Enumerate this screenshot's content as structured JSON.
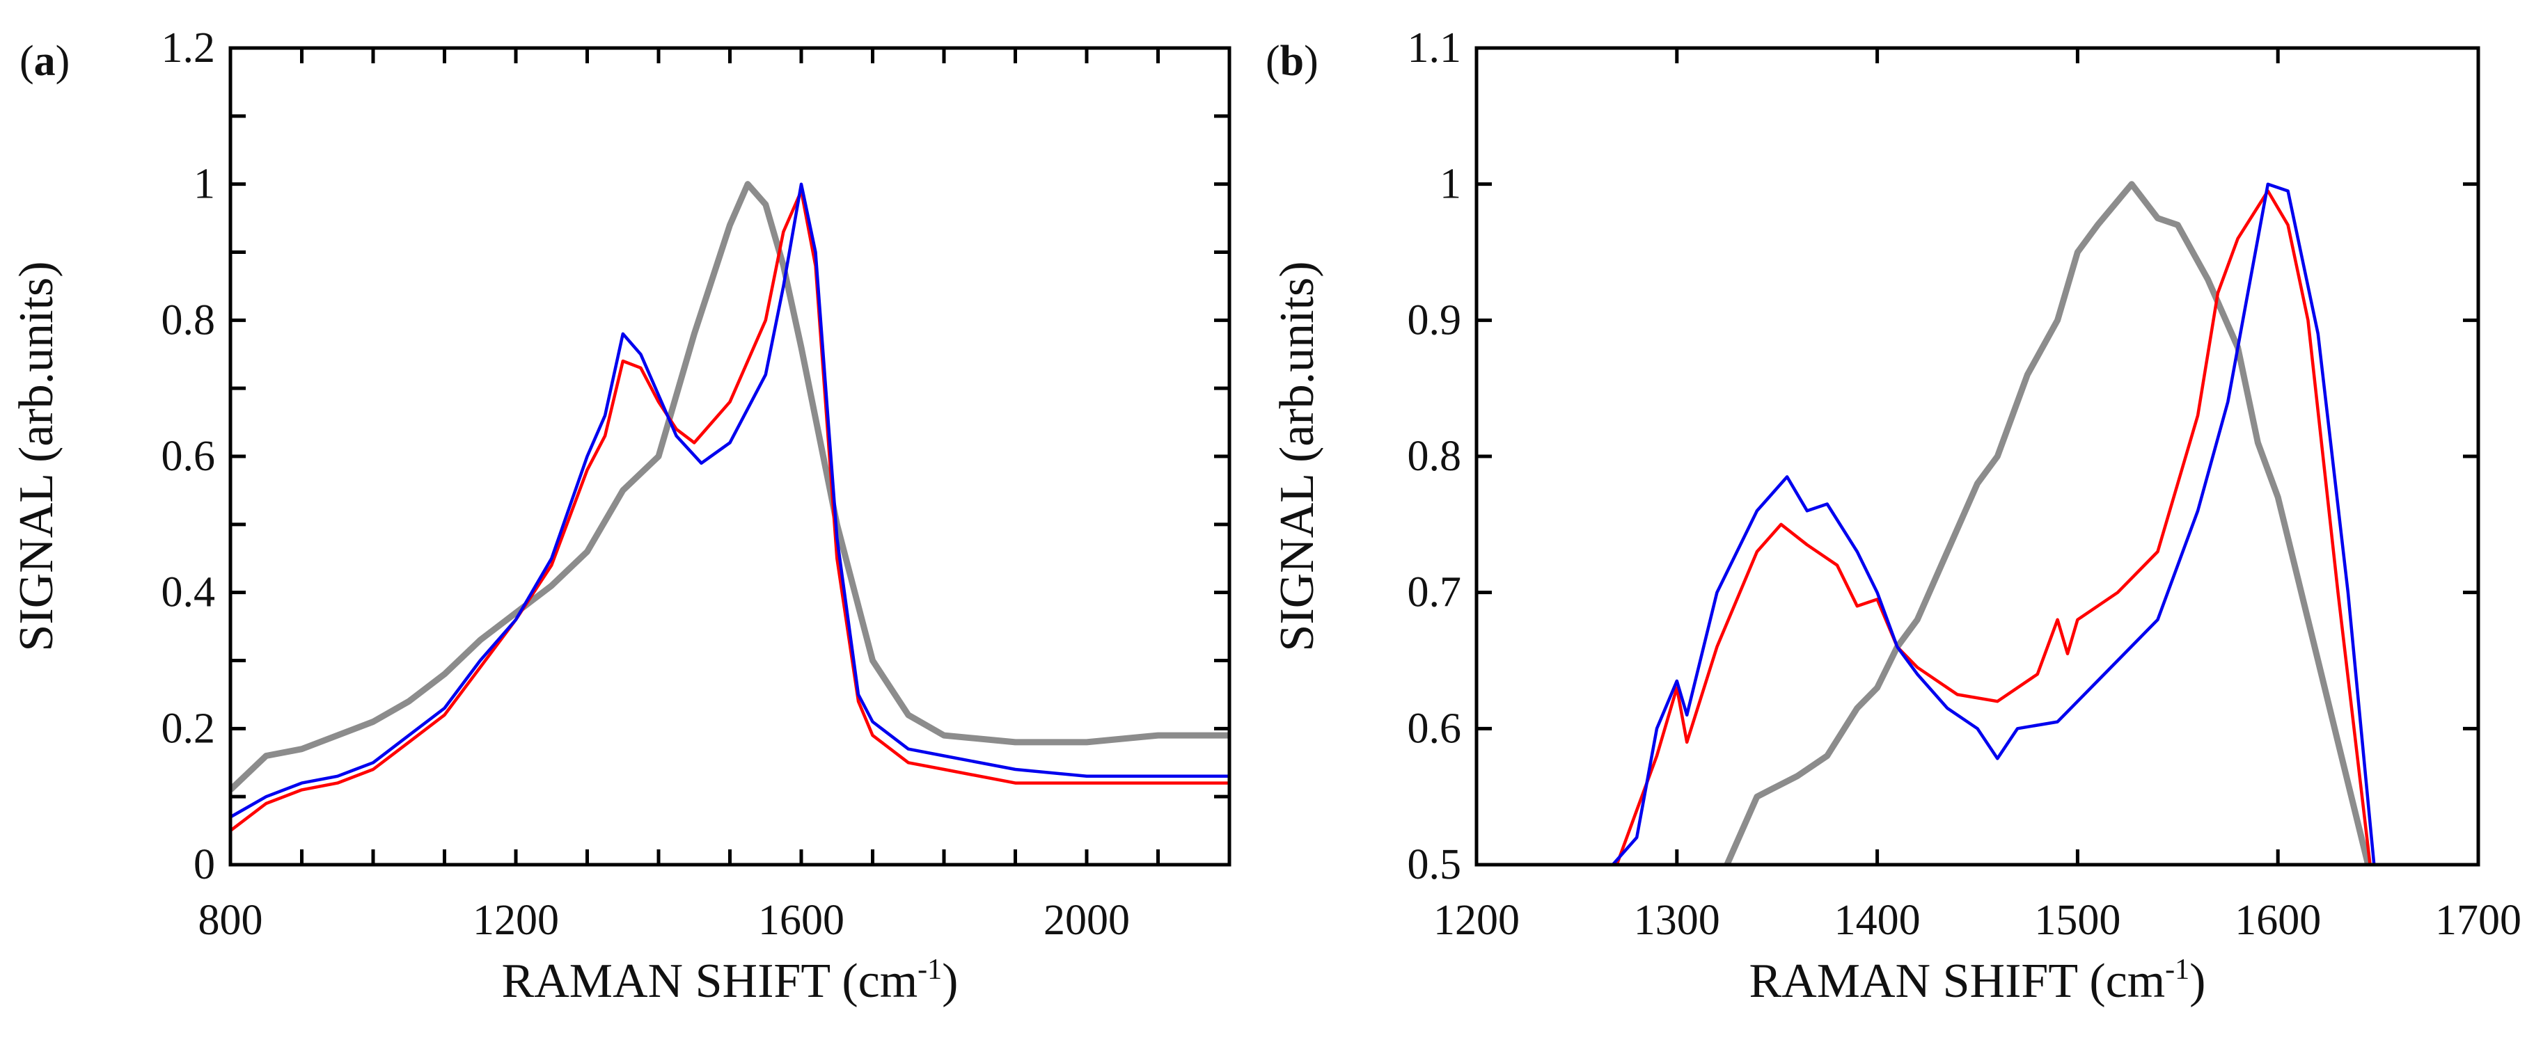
{
  "chart_data": [
    {
      "type": "line",
      "panel_label": "a",
      "xlabel": "RAMAN SHIFT (cm",
      "xlabel_sup": "-1",
      "xlabel_end": ")",
      "ylabel": "SIGNAL (arb.units)",
      "xlim": [
        800,
        2200
      ],
      "ylim": [
        0,
        1.2
      ],
      "grid": false,
      "xticks": [
        {
          "v": 800,
          "label": "800"
        },
        {
          "v": 1200,
          "label": "1200"
        },
        {
          "v": 1600,
          "label": "1600"
        },
        {
          "v": 2000,
          "label": "2000"
        }
      ],
      "yticks": [
        {
          "v": 0,
          "label": "0"
        },
        {
          "v": 0.2,
          "label": "0.2"
        },
        {
          "v": 0.4,
          "label": "0.4"
        },
        {
          "v": 0.6,
          "label": "0.6"
        },
        {
          "v": 0.8,
          "label": "0.8"
        },
        {
          "v": 1.0,
          "label": "1"
        },
        {
          "v": 1.2,
          "label": "1.2"
        }
      ],
      "minor_x_step": 100,
      "minor_y_step": 0.1,
      "series": [
        {
          "name": "gray",
          "color": "#8c8c8c",
          "width": 9,
          "x": [
            800,
            850,
            900,
            950,
            1000,
            1050,
            1100,
            1150,
            1200,
            1250,
            1300,
            1350,
            1400,
            1450,
            1500,
            1525,
            1550,
            1575,
            1600,
            1650,
            1700,
            1750,
            1800,
            1900,
            2000,
            2100,
            2200
          ],
          "y": [
            0.11,
            0.16,
            0.17,
            0.19,
            0.21,
            0.24,
            0.28,
            0.33,
            0.37,
            0.41,
            0.46,
            0.55,
            0.6,
            0.78,
            0.94,
            1.0,
            0.97,
            0.88,
            0.76,
            0.5,
            0.3,
            0.22,
            0.19,
            0.18,
            0.18,
            0.19,
            0.19
          ]
        },
        {
          "name": "red",
          "color": "#ff0000",
          "width": 4.5,
          "x": [
            800,
            850,
            900,
            950,
            1000,
            1050,
            1100,
            1150,
            1200,
            1250,
            1300,
            1325,
            1350,
            1375,
            1400,
            1425,
            1450,
            1500,
            1550,
            1575,
            1600,
            1620,
            1650,
            1680,
            1700,
            1750,
            1800,
            1900,
            2000,
            2100,
            2200
          ],
          "y": [
            0.05,
            0.09,
            0.11,
            0.12,
            0.14,
            0.18,
            0.22,
            0.29,
            0.36,
            0.44,
            0.58,
            0.63,
            0.74,
            0.73,
            0.68,
            0.64,
            0.62,
            0.68,
            0.8,
            0.93,
            0.99,
            0.88,
            0.45,
            0.24,
            0.19,
            0.15,
            0.14,
            0.12,
            0.12,
            0.12,
            0.12
          ]
        },
        {
          "name": "blue",
          "color": "#0000ee",
          "width": 4.5,
          "x": [
            800,
            850,
            900,
            950,
            1000,
            1050,
            1100,
            1150,
            1200,
            1250,
            1300,
            1325,
            1350,
            1375,
            1400,
            1425,
            1460,
            1500,
            1550,
            1575,
            1600,
            1620,
            1650,
            1680,
            1700,
            1750,
            1800,
            1900,
            2000,
            2100,
            2200
          ],
          "y": [
            0.07,
            0.1,
            0.12,
            0.13,
            0.15,
            0.19,
            0.23,
            0.3,
            0.36,
            0.45,
            0.6,
            0.66,
            0.78,
            0.75,
            0.69,
            0.63,
            0.59,
            0.62,
            0.72,
            0.85,
            1.0,
            0.9,
            0.48,
            0.25,
            0.21,
            0.17,
            0.16,
            0.14,
            0.13,
            0.13,
            0.13
          ]
        }
      ]
    },
    {
      "type": "line",
      "panel_label": "b",
      "xlabel": "RAMAN SHIFT (cm",
      "xlabel_sup": "-1",
      "xlabel_end": ")",
      "ylabel": "SIGNAL (arb.units)",
      "xlim": [
        1200,
        1700
      ],
      "ylim": [
        0.5,
        1.1
      ],
      "grid": false,
      "xticks": [
        {
          "v": 1200,
          "label": "1200"
        },
        {
          "v": 1300,
          "label": "1300"
        },
        {
          "v": 1400,
          "label": "1400"
        },
        {
          "v": 1500,
          "label": "1500"
        },
        {
          "v": 1600,
          "label": "1600"
        },
        {
          "v": 1700,
          "label": "1700"
        }
      ],
      "yticks": [
        {
          "v": 0.5,
          "label": "0.5"
        },
        {
          "v": 0.6,
          "label": "0.6"
        },
        {
          "v": 0.7,
          "label": "0.7"
        },
        {
          "v": 0.8,
          "label": "0.8"
        },
        {
          "v": 0.9,
          "label": "0.9"
        },
        {
          "v": 1.0,
          "label": "1"
        },
        {
          "v": 1.1,
          "label": "1.1"
        }
      ],
      "minor_x_step": 100,
      "minor_y_step": 0.1,
      "series": [
        {
          "name": "gray",
          "color": "#8c8c8c",
          "width": 9,
          "x": [
            1325,
            1340,
            1360,
            1375,
            1390,
            1400,
            1410,
            1420,
            1435,
            1450,
            1460,
            1475,
            1490,
            1500,
            1510,
            1527,
            1540,
            1550,
            1565,
            1580,
            1590,
            1600,
            1610,
            1620,
            1630,
            1645
          ],
          "y": [
            0.5,
            0.55,
            0.565,
            0.58,
            0.615,
            0.63,
            0.66,
            0.68,
            0.73,
            0.78,
            0.8,
            0.86,
            0.9,
            0.95,
            0.97,
            1.0,
            0.975,
            0.97,
            0.93,
            0.88,
            0.81,
            0.77,
            0.71,
            0.65,
            0.59,
            0.5
          ]
        },
        {
          "name": "red",
          "color": "#ff0000",
          "width": 4.5,
          "x": [
            1270,
            1280,
            1290,
            1300,
            1305,
            1320,
            1340,
            1352,
            1365,
            1380,
            1390,
            1400,
            1410,
            1420,
            1440,
            1460,
            1480,
            1490,
            1495,
            1500,
            1520,
            1540,
            1550,
            1560,
            1570,
            1580,
            1595,
            1605,
            1615,
            1630,
            1646
          ],
          "y": [
            0.5,
            0.54,
            0.58,
            0.63,
            0.59,
            0.66,
            0.73,
            0.75,
            0.735,
            0.72,
            0.69,
            0.695,
            0.66,
            0.645,
            0.625,
            0.62,
            0.64,
            0.68,
            0.655,
            0.68,
            0.7,
            0.73,
            0.78,
            0.83,
            0.92,
            0.96,
            0.995,
            0.97,
            0.9,
            0.7,
            0.5
          ]
        },
        {
          "name": "blue",
          "color": "#0000ee",
          "width": 4.5,
          "x": [
            1268,
            1280,
            1290,
            1300,
            1305,
            1320,
            1340,
            1355,
            1365,
            1375,
            1390,
            1400,
            1410,
            1420,
            1435,
            1450,
            1460,
            1470,
            1490,
            1500,
            1520,
            1540,
            1560,
            1575,
            1585,
            1595,
            1605,
            1620,
            1635,
            1648
          ],
          "y": [
            0.5,
            0.52,
            0.6,
            0.635,
            0.61,
            0.7,
            0.76,
            0.785,
            0.76,
            0.765,
            0.73,
            0.7,
            0.66,
            0.64,
            0.615,
            0.6,
            0.578,
            0.6,
            0.605,
            0.62,
            0.65,
            0.68,
            0.76,
            0.84,
            0.92,
            1.0,
            0.995,
            0.89,
            0.7,
            0.5
          ]
        }
      ]
    }
  ]
}
